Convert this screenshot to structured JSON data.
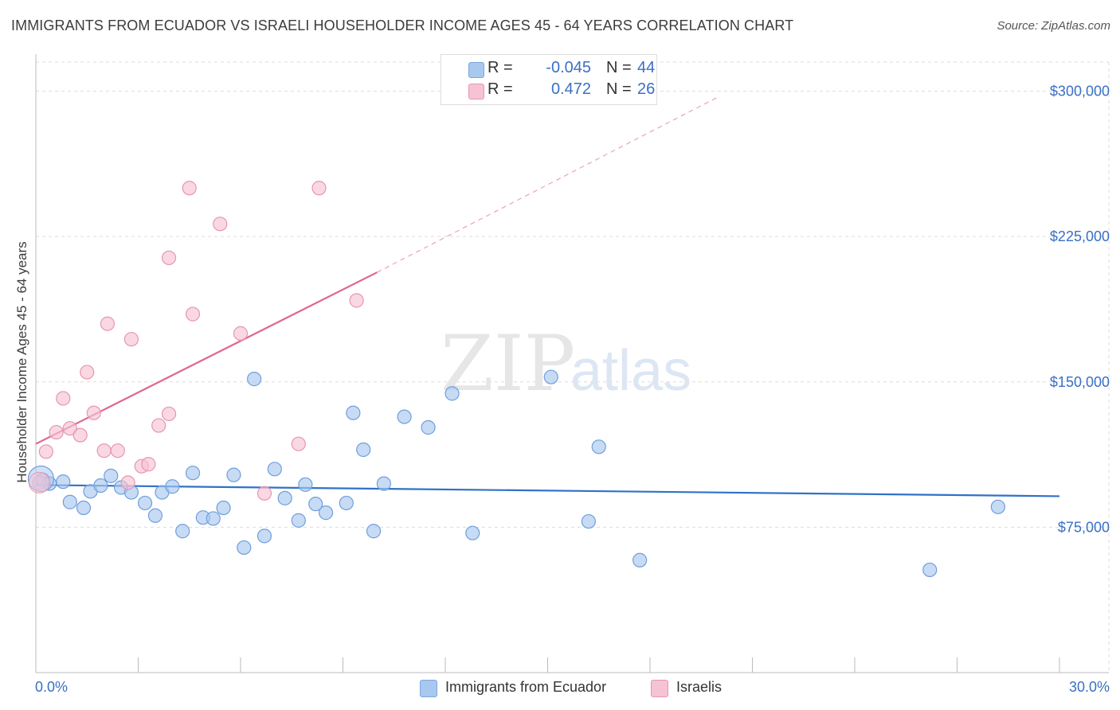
{
  "title": "IMMIGRANTS FROM ECUADOR VS ISRAELI HOUSEHOLDER INCOME AGES 45 - 64 YEARS CORRELATION CHART",
  "source": "Source: ZipAtlas.com",
  "watermark": {
    "zip": "ZIP",
    "atlas": "atlas"
  },
  "stats": [
    {
      "r_label": "R =",
      "r_value": "-0.045",
      "n_label": "N =",
      "n_value": "44",
      "color": "#a9c8f0",
      "border": "#7aa6de"
    },
    {
      "r_label": "R =",
      "r_value": "0.472",
      "n_label": "N =",
      "n_value": "26",
      "color": "#f6c3d3",
      "border": "#e895b0"
    }
  ],
  "legend": [
    {
      "label": "Immigrants from Ecuador",
      "color": "#a9c8f0",
      "border": "#7aa6de"
    },
    {
      "label": "Israelis",
      "color": "#f6c3d3",
      "border": "#e895b0"
    }
  ],
  "chart_data": {
    "type": "scatter",
    "title": "IMMIGRANTS FROM ECUADOR VS ISRAELI HOUSEHOLDER INCOME AGES 45 - 64 YEARS CORRELATION CHART",
    "xlabel": "",
    "ylabel": "Householder Income Ages 45 - 64 years",
    "xlim": [
      0,
      30
    ],
    "ylim": [
      0,
      315000
    ],
    "x_tick_labels": {
      "min": "0.0%",
      "max": "30.0%"
    },
    "y_ticks": [
      {
        "value": 75000,
        "label": "$75,000"
      },
      {
        "value": 150000,
        "label": "$150,000"
      },
      {
        "value": 225000,
        "label": "$225,000"
      },
      {
        "value": 300000,
        "label": "$300,000"
      }
    ],
    "grid": true,
    "series": [
      {
        "name": "Immigrants from Ecuador",
        "color": "#a9c8f0",
        "stroke": "#6f9fdc",
        "line_color": "#2f72c8",
        "trend": {
          "x0": 0,
          "y0": 96800,
          "x1": 30,
          "y1": 91000
        },
        "points": [
          [
            0.2,
            99500
          ],
          [
            0.4,
            97500
          ],
          [
            0.8,
            98500
          ],
          [
            1.0,
            88000
          ],
          [
            1.4,
            85000
          ],
          [
            1.6,
            93500
          ],
          [
            1.9,
            96500
          ],
          [
            2.2,
            101500
          ],
          [
            2.5,
            95500
          ],
          [
            2.8,
            93000
          ],
          [
            3.2,
            87500
          ],
          [
            3.5,
            81000
          ],
          [
            3.7,
            93000
          ],
          [
            4.0,
            96000
          ],
          [
            4.3,
            73000
          ],
          [
            4.6,
            103000
          ],
          [
            4.9,
            80000
          ],
          [
            5.2,
            79500
          ],
          [
            5.5,
            85000
          ],
          [
            5.8,
            102000
          ],
          [
            6.1,
            64500
          ],
          [
            6.4,
            151500
          ],
          [
            6.7,
            70500
          ],
          [
            7.0,
            105000
          ],
          [
            7.3,
            90000
          ],
          [
            7.7,
            78500
          ],
          [
            7.9,
            97000
          ],
          [
            8.2,
            87000
          ],
          [
            8.5,
            82500
          ],
          [
            9.1,
            87500
          ],
          [
            9.3,
            134000
          ],
          [
            9.6,
            115000
          ],
          [
            9.9,
            73000
          ],
          [
            10.2,
            97500
          ],
          [
            10.8,
            132000
          ],
          [
            11.5,
            126500
          ],
          [
            12.2,
            144000
          ],
          [
            12.8,
            72000
          ],
          [
            15.1,
            152500
          ],
          [
            16.2,
            78000
          ],
          [
            16.5,
            116500
          ],
          [
            17.7,
            58000
          ],
          [
            26.2,
            53000
          ],
          [
            28.2,
            85500
          ]
        ]
      },
      {
        "name": "Israelis",
        "color": "#f6c3d3",
        "stroke": "#e895b0",
        "line_color": "#e0668e",
        "trend": {
          "x0": 0,
          "y0": 118000,
          "x1": 10,
          "y1": 206500
        },
        "trend_extension": {
          "x0": 10,
          "y0": 206500,
          "x1": 20,
          "y1": 297000
        },
        "points": [
          [
            0.1,
            98000
          ],
          [
            0.3,
            114000
          ],
          [
            0.6,
            124000
          ],
          [
            0.8,
            141500
          ],
          [
            1.0,
            126000
          ],
          [
            1.3,
            122500
          ],
          [
            1.5,
            155000
          ],
          [
            1.7,
            134000
          ],
          [
            2.0,
            114500
          ],
          [
            2.1,
            180000
          ],
          [
            2.4,
            114500
          ],
          [
            2.7,
            98000
          ],
          [
            2.8,
            172000
          ],
          [
            3.1,
            106500
          ],
          [
            3.3,
            107500
          ],
          [
            3.6,
            127500
          ],
          [
            3.9,
            214000
          ],
          [
            3.9,
            133500
          ],
          [
            4.5,
            250000
          ],
          [
            4.6,
            185000
          ],
          [
            5.4,
            231500
          ],
          [
            6.0,
            175000
          ],
          [
            6.7,
            92500
          ],
          [
            7.7,
            118000
          ],
          [
            8.3,
            250000
          ],
          [
            9.4,
            192000
          ]
        ]
      }
    ]
  }
}
